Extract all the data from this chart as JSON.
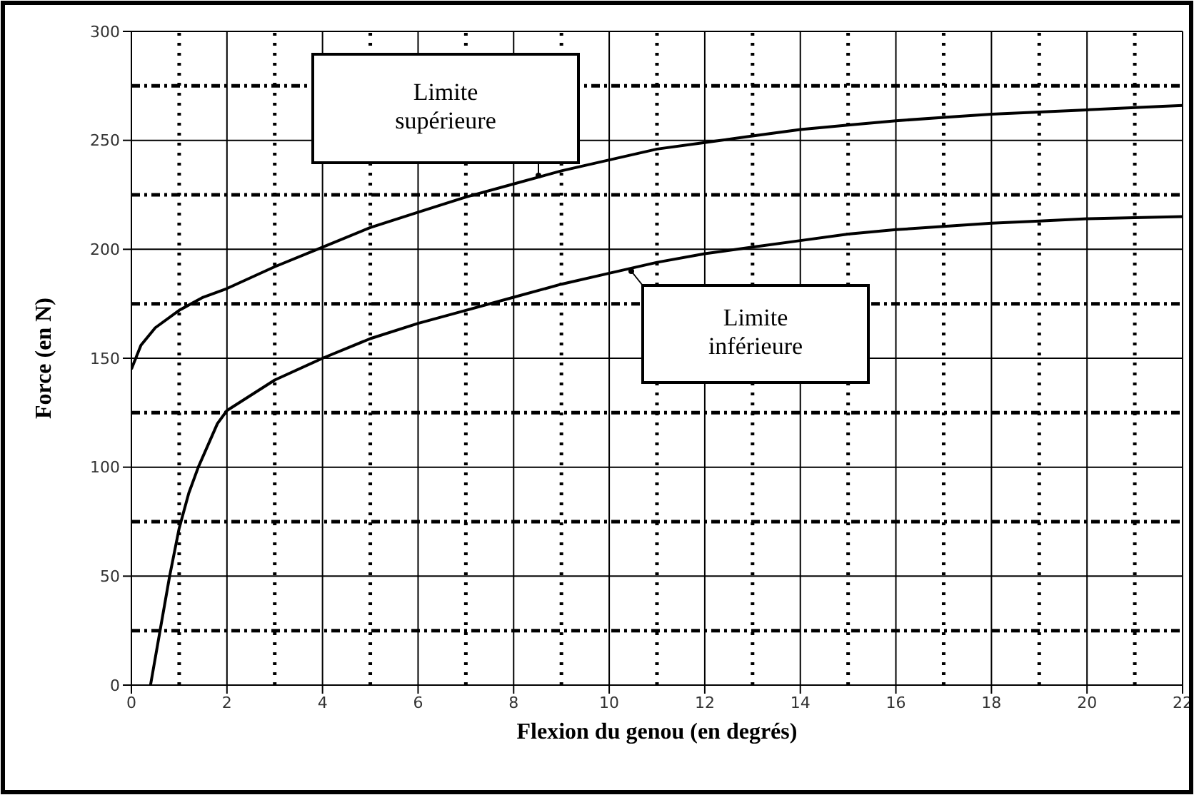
{
  "chart_data": {
    "type": "line",
    "xlabel": "Flexion du genou (en degrés)",
    "ylabel": "Force (en N)",
    "xlim": [
      0,
      22
    ],
    "xticks": [
      0,
      2,
      4,
      6,
      8,
      10,
      12,
      14,
      16,
      18,
      20,
      22
    ],
    "ylim": [
      0,
      300
    ],
    "yticks": [
      0,
      50,
      100,
      150,
      200,
      250,
      300
    ],
    "grid": true,
    "legend": false,
    "marker": "none",
    "line_style": "solid",
    "series": [
      {
        "color": "#000000",
        "x": [
          0,
          0.2,
          0.5,
          1,
          1.5,
          2,
          3,
          4,
          5,
          6,
          7,
          8,
          9,
          10,
          11,
          12,
          13,
          14,
          15,
          16,
          17,
          18,
          19,
          20,
          21,
          22
        ],
        "values": [
          145,
          156,
          164,
          172,
          178,
          182,
          192,
          201,
          210,
          217,
          224,
          230,
          236,
          241,
          246,
          249,
          252,
          255,
          257,
          259,
          260.5,
          262,
          263,
          264,
          265,
          266
        ]
      },
      {
        "color": "#000000",
        "x": [
          0.4,
          0.6,
          0.8,
          1,
          1.2,
          1.4,
          1.6,
          1.8,
          2,
          3,
          4,
          5,
          6,
          7,
          8,
          9,
          10,
          11,
          12,
          13,
          14,
          15,
          16,
          17,
          18,
          19,
          20,
          21,
          22
        ],
        "values": [
          0,
          25,
          50,
          72,
          88,
          100,
          110,
          120,
          126,
          140,
          150,
          159,
          166,
          172,
          178,
          184,
          189,
          194,
          198,
          201,
          204,
          207,
          209,
          210.5,
          212,
          213,
          214,
          214.5,
          215
        ]
      }
    ],
    "annotations": [
      "Limite supérieure",
      "Limite inférieure"
    ]
  }
}
